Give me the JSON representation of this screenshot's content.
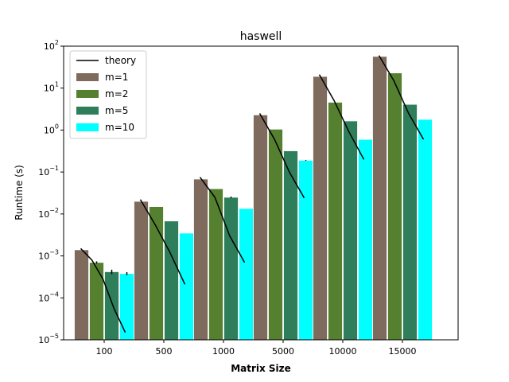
{
  "chart_data": {
    "type": "bar",
    "title": "haswell",
    "xlabel": "Matrix Size",
    "ylabel": "Runtime (s)",
    "yscale": "log",
    "ylim": [
      1e-05,
      100
    ],
    "yticks": [
      {
        "value": 1e-05,
        "base": "10",
        "exp": "−5"
      },
      {
        "value": 0.0001,
        "base": "10",
        "exp": "−4"
      },
      {
        "value": 0.001,
        "base": "10",
        "exp": "−3"
      },
      {
        "value": 0.01,
        "base": "10",
        "exp": "−2"
      },
      {
        "value": 0.1,
        "base": "10",
        "exp": "−1"
      },
      {
        "value": 1,
        "base": "10",
        "exp": "0"
      },
      {
        "value": 10,
        "base": "10",
        "exp": "1"
      },
      {
        "value": 100,
        "base": "10",
        "exp": "2"
      }
    ],
    "categories": [
      "100",
      "500",
      "1000",
      "5000",
      "10000",
      "15000"
    ],
    "series": [
      {
        "name": "m=1",
        "color": "#7f6b5d",
        "values": [
          0.0014,
          0.02,
          0.068,
          2.3,
          19,
          57
        ],
        "errors": [
          0,
          0,
          0,
          0,
          0,
          0
        ]
      },
      {
        "name": "m=2",
        "color": "#548030",
        "values": [
          0.0007,
          0.015,
          0.04,
          1.05,
          4.6,
          23
        ],
        "errors": [
          4e-05,
          0,
          0,
          0,
          0,
          0
        ]
      },
      {
        "name": "m=5",
        "color": "#2e7d5b",
        "values": [
          0.00042,
          0.0068,
          0.025,
          0.32,
          1.65,
          4.1
        ],
        "errors": [
          5e-05,
          0,
          0.001,
          0,
          0,
          0
        ]
      },
      {
        "name": "m=10",
        "color": "#00ffff",
        "values": [
          0.00038,
          0.0035,
          0.0135,
          0.19,
          0.6,
          1.8
        ],
        "errors": [
          3e-05,
          0,
          0,
          0.004,
          0,
          0
        ]
      }
    ],
    "theory": {
      "name": "theory",
      "color": "#000000",
      "points_per_group": [
        [
          0.0015,
          0.0008,
          0.00028,
          5.5e-05,
          1.5e-05
        ],
        [
          0.022,
          0.0055,
          0.0012,
          0.00021
        ],
        [
          0.075,
          0.025,
          0.003,
          0.0007
        ],
        [
          2.5,
          0.6,
          0.1,
          0.024
        ],
        [
          21,
          5,
          0.9,
          0.2
        ],
        [
          60,
          15,
          2.5,
          0.6
        ]
      ]
    },
    "legend": {
      "position": "top-left"
    },
    "grid": false
  }
}
